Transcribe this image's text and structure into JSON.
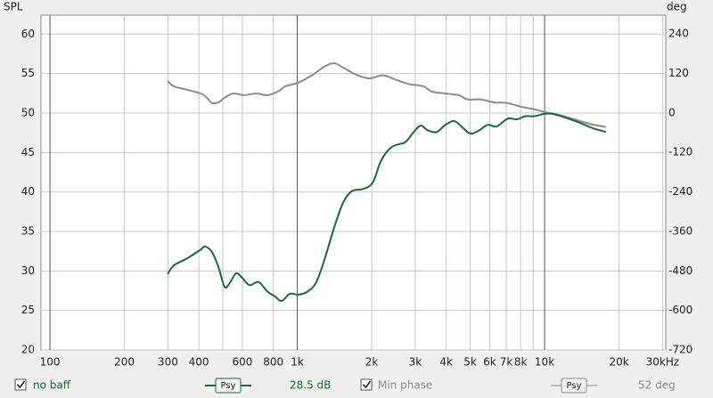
{
  "chart_data": {
    "type": "line",
    "y_label": "SPL",
    "y2_label": "deg",
    "xscale": "log",
    "xlim": [
      92,
      30900
    ],
    "ylim": [
      20,
      62.4
    ],
    "y2lim": [
      -720,
      297
    ],
    "grid": true,
    "xticks": [
      100,
      200,
      300,
      400,
      600,
      800,
      {
        "value": 1000,
        "label": "1k"
      },
      {
        "value": 2000,
        "label": "2k"
      },
      {
        "value": 3000,
        "label": "3k"
      },
      {
        "value": 4000,
        "label": "4k"
      },
      {
        "value": 5000,
        "label": "5k"
      },
      {
        "value": 6000,
        "label": "6k"
      },
      {
        "value": 7000,
        "label": "7k"
      },
      {
        "value": 8000,
        "label": "8k"
      },
      {
        "value": 10000,
        "label": "10k"
      },
      {
        "value": 20000,
        "label": "20k"
      },
      {
        "value": 30000,
        "label": "30kHz"
      }
    ],
    "xminor": [
      500,
      9000
    ],
    "yticks": [
      20,
      25,
      30,
      35,
      40,
      45,
      50,
      55,
      60
    ],
    "y2ticks": [
      -720,
      -600,
      -480,
      -360,
      -240,
      -120,
      0,
      120,
      240
    ],
    "psy_label": "Psy",
    "series": [
      {
        "name": "no baff",
        "color": "#1a6b3a",
        "value_label": "28.5 dB",
        "x": [
          299,
          317,
          359,
          407,
          423,
          452,
          480,
          508,
          534,
          566,
          600,
          641,
          697,
          757,
          810,
          865,
          932,
          1011,
          1102,
          1190,
          1275,
          1410,
          1530,
          1660,
          1850,
          2020,
          2185,
          2410,
          2730,
          2920,
          3150,
          3370,
          3660,
          3970,
          4310,
          4610,
          5000,
          5430,
          5890,
          6400,
          7100,
          7710,
          8370,
          9080,
          10000,
          10800,
          12200,
          13800,
          15600,
          17700
        ],
        "values": [
          29.6,
          30.7,
          31.6,
          32.7,
          33.1,
          32.4,
          30.5,
          28.0,
          28.5,
          29.7,
          29.1,
          28.2,
          28.6,
          27.4,
          26.8,
          26.2,
          27.1,
          27.0,
          27.4,
          28.5,
          31.0,
          35.5,
          38.6,
          40.1,
          40.4,
          41.2,
          44.0,
          45.7,
          46.3,
          47.4,
          48.4,
          47.8,
          47.6,
          48.5,
          49.0,
          48.3,
          47.4,
          47.8,
          48.5,
          48.3,
          49.3,
          49.2,
          49.6,
          49.6,
          49.9,
          49.9,
          49.4,
          48.8,
          48.1,
          47.6
        ]
      },
      {
        "name": "Min phase",
        "color": "#8c8c8c",
        "axis": "y2",
        "value_label": "52 deg",
        "x": [
          299,
          317,
          359,
          407,
          431,
          452,
          480,
          508,
          552,
          608,
          684,
          757,
          837,
          895,
          1011,
          1145,
          1290,
          1410,
          1530,
          1730,
          1960,
          2220,
          2520,
          2850,
          3230,
          3500,
          3970,
          4490,
          4890,
          5520,
          6240,
          7080,
          8000,
          9080,
          10000,
          11700,
          13800,
          15600,
          17700
        ],
        "values": [
          97,
          81,
          70,
          59,
          46,
          30,
          32,
          46,
          59,
          54,
          59,
          54,
          65,
          81,
          92,
          114,
          141,
          151,
          138,
          116,
          105,
          114,
          100,
          87,
          81,
          65,
          59,
          54,
          41,
          41,
          32,
          30,
          19,
          11,
          3,
          -8,
          -24,
          -35,
          -43
        ]
      }
    ]
  }
}
